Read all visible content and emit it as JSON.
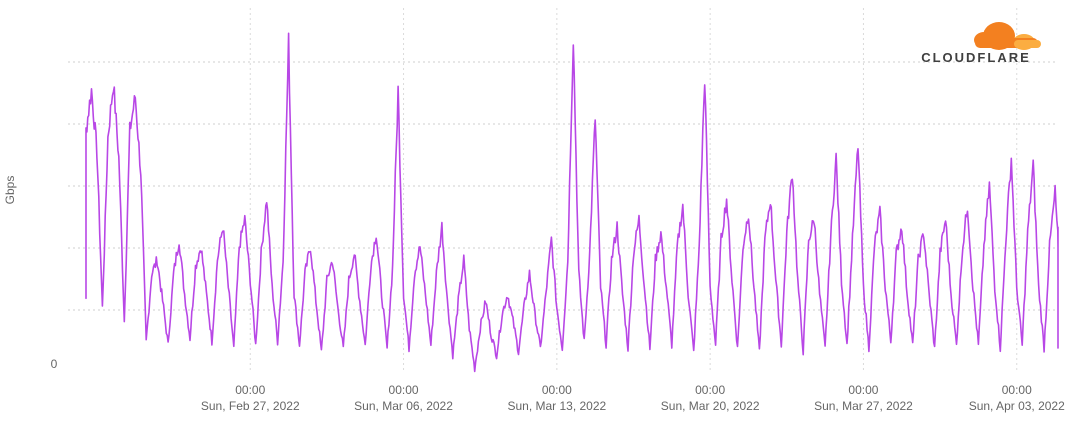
{
  "logo": {
    "text": "CLOUDFLARE",
    "colors": {
      "cloud_dark": "#f38020",
      "cloud_light": "#fbad41",
      "text": "#404040"
    }
  },
  "chart_data": {
    "type": "line",
    "title": "",
    "xlabel": "",
    "ylabel": "Gbps",
    "y_ticks_labeled": [
      "0"
    ],
    "y_gridlines": 5,
    "grid": "dashed",
    "line_color": "#b847e6",
    "x_ticks": [
      {
        "time": "00:00",
        "date": "Sun, Feb 27, 2022",
        "day_index": 8
      },
      {
        "time": "00:00",
        "date": "Sun, Mar 06, 2022",
        "day_index": 15
      },
      {
        "time": "00:00",
        "date": "Sun, Mar 13, 2022",
        "day_index": 22
      },
      {
        "time": "00:00",
        "date": "Sun, Mar 20, 2022",
        "day_index": 29
      },
      {
        "time": "00:00",
        "date": "Sun, Mar 27, 2022",
        "day_index": 36
      },
      {
        "time": "00:00",
        "date": "Sun, Apr 03, 2022",
        "day_index": 43
      }
    ],
    "x_range_days": [
      0,
      44.5
    ],
    "y_range_relative": [
      0,
      1.0
    ],
    "series": [
      {
        "resolution": "1 point per 6 hours, relative traffic (1.0 = top of plot)",
        "values": [
          0.38,
          0.2,
          0.68,
          0.8,
          0.62,
          0.16,
          0.66,
          0.82,
          0.6,
          0.12,
          0.68,
          0.78,
          0.56,
          0.06,
          0.26,
          0.3,
          0.18,
          0.05,
          0.26,
          0.36,
          0.2,
          0.07,
          0.28,
          0.34,
          0.2,
          0.06,
          0.3,
          0.4,
          0.22,
          0.04,
          0.34,
          0.42,
          0.24,
          0.05,
          0.32,
          0.48,
          0.22,
          0.06,
          0.3,
          0.94,
          0.2,
          0.05,
          0.26,
          0.34,
          0.18,
          0.03,
          0.24,
          0.3,
          0.16,
          0.04,
          0.24,
          0.32,
          0.18,
          0.05,
          0.28,
          0.38,
          0.2,
          0.04,
          0.28,
          0.8,
          0.2,
          0.04,
          0.26,
          0.34,
          0.2,
          0.05,
          0.26,
          0.4,
          0.18,
          0.02,
          0.18,
          0.3,
          0.1,
          -0.02,
          0.1,
          0.18,
          0.08,
          0.02,
          0.14,
          0.2,
          0.12,
          0.03,
          0.16,
          0.26,
          0.14,
          0.04,
          0.2,
          0.36,
          0.16,
          0.04,
          0.3,
          0.96,
          0.26,
          0.06,
          0.32,
          0.72,
          0.22,
          0.05,
          0.3,
          0.4,
          0.2,
          0.04,
          0.32,
          0.42,
          0.22,
          0.04,
          0.3,
          0.38,
          0.22,
          0.05,
          0.34,
          0.46,
          0.2,
          0.03,
          0.34,
          0.84,
          0.22,
          0.05,
          0.36,
          0.48,
          0.24,
          0.04,
          0.34,
          0.44,
          0.22,
          0.03,
          0.36,
          0.48,
          0.24,
          0.05,
          0.38,
          0.56,
          0.24,
          0.03,
          0.36,
          0.42,
          0.2,
          0.04,
          0.36,
          0.6,
          0.24,
          0.05,
          0.36,
          0.64,
          0.22,
          0.04,
          0.34,
          0.44,
          0.22,
          0.06,
          0.32,
          0.4,
          0.2,
          0.05,
          0.3,
          0.38,
          0.2,
          0.04,
          0.32,
          0.42,
          0.2,
          0.05,
          0.32,
          0.46,
          0.22,
          0.05,
          0.34,
          0.52,
          0.22,
          0.04,
          0.36,
          0.6,
          0.22,
          0.05,
          0.38,
          0.58,
          0.22,
          0.04,
          0.34,
          0.5,
          0.24,
          0.05,
          0.32,
          0.4,
          0.36,
          0.3
        ]
      }
    ]
  }
}
